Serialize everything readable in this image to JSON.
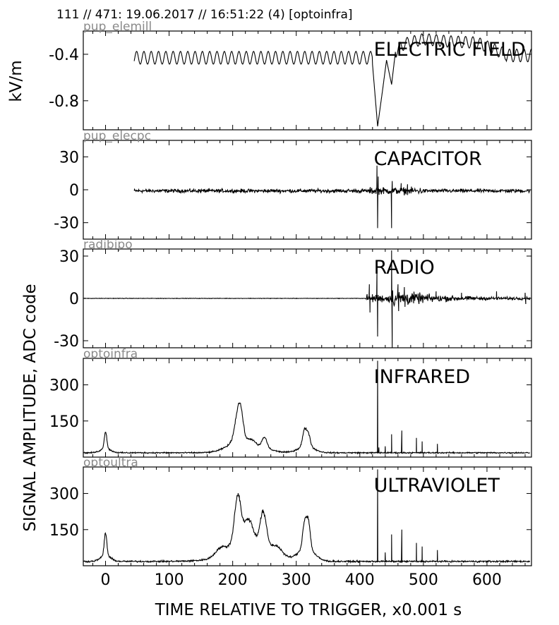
{
  "header": {
    "text": "111 // 471:   19.06.2017 // 16:51:22 (4)  [optoinfra]"
  },
  "chart_data": {
    "type": "line",
    "shared_x": {
      "label": "TIME RELATIVE TO TRIGGER,   x0.001 s",
      "ticks": [
        0,
        100,
        200,
        300,
        400,
        500,
        600
      ],
      "xlim": [
        -35,
        670
      ]
    },
    "ylabels": {
      "top": "kV/m",
      "main": "SIGNAL AMPLITUDE,  ADC code"
    },
    "panels": [
      {
        "id": "efield",
        "sensor": "pup_elemill",
        "title": "ELECTRIC FIELD",
        "ylim": [
          -1.05,
          -0.2
        ],
        "yticks": [
          -0.4,
          -0.8
        ],
        "ytick_labels": [
          "-0.4",
          "-0.8"
        ],
        "series": [
          {
            "kind": "efield",
            "start": 45,
            "end": 670,
            "baseline": -0.43,
            "osc_amp": 0.055,
            "osc_period": 11.5,
            "features": [
              {
                "x": 420,
                "y": -0.49
              },
              {
                "x": 428,
                "y": -1.02
              },
              {
                "x": 436,
                "y": -0.7
              },
              {
                "x": 442,
                "y": -0.45
              },
              {
                "x": 450,
                "y": -0.66
              },
              {
                "x": 456,
                "y": -0.38
              },
              {
                "x": 470,
                "y": -0.31
              },
              {
                "x": 500,
                "y": -0.27
              },
              {
                "x": 540,
                "y": -0.29
              },
              {
                "x": 585,
                "y": -0.3
              },
              {
                "x": 630,
                "y": -0.4
              }
            ]
          }
        ]
      },
      {
        "id": "capacitor",
        "sensor": "pup_elecpc",
        "title": "CAPACITOR",
        "ylim": [
          -45,
          45
        ],
        "yticks": [
          30,
          0,
          -30
        ],
        "ytick_labels": [
          "30",
          "0",
          "-30"
        ],
        "series": [
          {
            "kind": "noise",
            "start": 45,
            "end": 668,
            "baseline": -1,
            "noise": 2.5,
            "spikes": [
              {
                "x": 427,
                "y": 22
              },
              {
                "x": 428,
                "y": -35
              },
              {
                "x": 429,
                "y": 12
              },
              {
                "x": 450,
                "y": -35
              },
              {
                "x": 451,
                "y": 8
              },
              {
                "x": 465,
                "y": 6
              },
              {
                "x": 470,
                "y": -5
              },
              {
                "x": 475,
                "y": 5
              }
            ]
          }
        ]
      },
      {
        "id": "radio",
        "sensor": "radibipo",
        "title": "RADIO",
        "ylim": [
          -35,
          35
        ],
        "yticks": [
          30,
          0,
          -30
        ],
        "ytick_labels": [
          "30",
          "0",
          "-30"
        ],
        "series": [
          {
            "kind": "radio",
            "start": -35,
            "end": 668,
            "burst_start": 410,
            "burst_end": 668,
            "spikes": [
              {
                "x": 415,
                "y": 10
              },
              {
                "x": 416,
                "y": -10
              },
              {
                "x": 427,
                "y": 22
              },
              {
                "x": 428,
                "y": -27
              },
              {
                "x": 450,
                "y": 34
              },
              {
                "x": 451,
                "y": -35
              },
              {
                "x": 460,
                "y": 10
              },
              {
                "x": 461,
                "y": -9
              },
              {
                "x": 470,
                "y": 8
              },
              {
                "x": 471,
                "y": -6
              },
              {
                "x": 520,
                "y": 5
              },
              {
                "x": 560,
                "y": 4
              },
              {
                "x": 615,
                "y": 5
              },
              {
                "x": 660,
                "y": 4
              },
              {
                "x": 661,
                "y": -4
              }
            ]
          }
        ]
      },
      {
        "id": "infrared",
        "sensor": "optoinfra",
        "title": "INFRARED",
        "ylim": [
          0,
          410
        ],
        "yticks": [
          300,
          150
        ],
        "ytick_labels": [
          "300",
          "150"
        ],
        "series": [
          {
            "kind": "optical",
            "start": -35,
            "end": 668,
            "baseline": 18,
            "noise": 4,
            "peaks": [
              {
                "x": 0,
                "h": 70,
                "w": 2
              },
              {
                "x": 208,
                "h": 105,
                "w": 5
              },
              {
                "x": 213,
                "h": 80,
                "w": 4
              },
              {
                "x": 230,
                "h": 20,
                "w": 6
              },
              {
                "x": 250,
                "h": 45,
                "w": 4
              },
              {
                "x": 313,
                "h": 65,
                "w": 3
              },
              {
                "x": 319,
                "h": 50,
                "w": 3
              }
            ],
            "spikes": [
              {
                "x": 428,
                "y": 400
              },
              {
                "x": 430,
                "y": 40
              },
              {
                "x": 440,
                "y": 45
              },
              {
                "x": 450,
                "y": 95
              },
              {
                "x": 466,
                "y": 110
              },
              {
                "x": 489,
                "y": 80
              },
              {
                "x": 498,
                "y": 65
              },
              {
                "x": 522,
                "y": 55
              }
            ]
          }
        ]
      },
      {
        "id": "ultraviolet",
        "sensor": "optoultra",
        "title": "ULTRAVIOLET",
        "ylim": [
          0,
          410
        ],
        "yticks": [
          300,
          150
        ],
        "ytick_labels": [
          "300",
          "150"
        ],
        "series": [
          {
            "kind": "optical",
            "start": -35,
            "end": 668,
            "baseline": 18,
            "noise": 5,
            "peaks": [
              {
                "x": 0,
                "h": 95,
                "w": 2
              },
              {
                "x": 180,
                "h": 25,
                "w": 8
              },
              {
                "x": 208,
                "h": 195,
                "w": 5
              },
              {
                "x": 225,
                "h": 95,
                "w": 7
              },
              {
                "x": 248,
                "h": 140,
                "w": 5
              },
              {
                "x": 270,
                "h": 30,
                "w": 8
              },
              {
                "x": 313,
                "h": 105,
                "w": 3
              },
              {
                "x": 319,
                "h": 110,
                "w": 3
              }
            ],
            "spikes": [
              {
                "x": 428,
                "y": 400
              },
              {
                "x": 440,
                "y": 55
              },
              {
                "x": 450,
                "y": 130
              },
              {
                "x": 466,
                "y": 150
              },
              {
                "x": 489,
                "y": 95
              },
              {
                "x": 498,
                "y": 80
              },
              {
                "x": 522,
                "y": 65
              }
            ]
          }
        ]
      }
    ]
  }
}
